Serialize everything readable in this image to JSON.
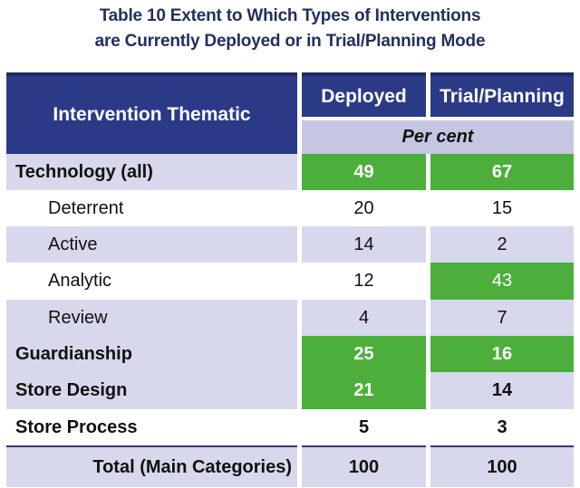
{
  "title": {
    "line1": "Table 10 Extent to Which Types of Interventions",
    "line2": "are Currently Deployed or in Trial/Planning Mode"
  },
  "header": {
    "main": "Intervention Thematic",
    "col1": "Deployed",
    "col2": "Trial/Planning",
    "unit": "Per cent"
  },
  "colors": {
    "header": "#2b3a86",
    "highlight": "#4caf3b",
    "row_shade": "#d7d8ec",
    "unit_band": "#c5c6e2"
  },
  "rows": [
    {
      "label": "Technology (all)",
      "deployed": "49",
      "trial": "67"
    },
    {
      "label": "Deterrent",
      "deployed": "20",
      "trial": "15"
    },
    {
      "label": "Active",
      "deployed": "14",
      "trial": "2"
    },
    {
      "label": "Analytic",
      "deployed": "12",
      "trial": "43"
    },
    {
      "label": "Review",
      "deployed": "4",
      "trial": "7"
    },
    {
      "label": "Guardianship",
      "deployed": "25",
      "trial": "16"
    },
    {
      "label": "Store Design",
      "deployed": "21",
      "trial": "14"
    },
    {
      "label": "Store Process",
      "deployed": "5",
      "trial": "3"
    }
  ],
  "total": {
    "label": "Total (Main Categories)",
    "deployed": "100",
    "trial": "100"
  }
}
